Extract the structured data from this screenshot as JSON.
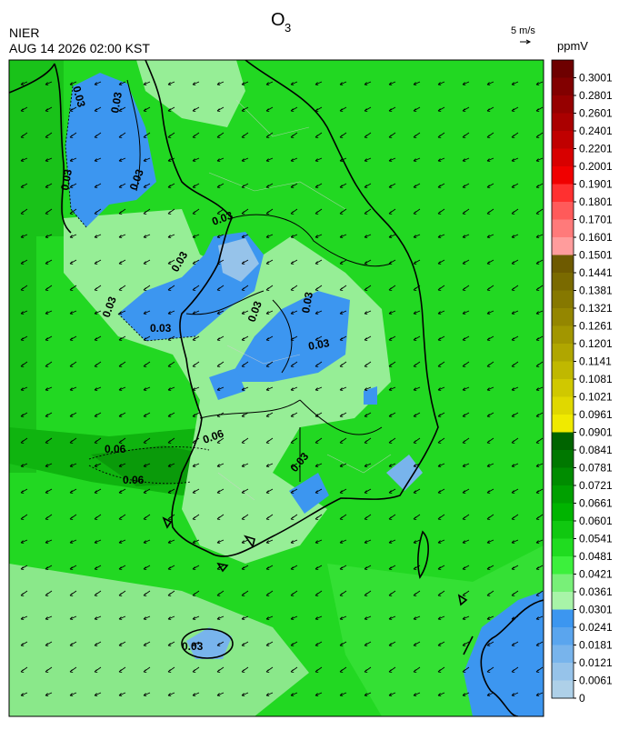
{
  "header": {
    "title": "O",
    "title_sub": "3",
    "source": "NIER",
    "datetime": "AUG 14 2026 02:00 KST",
    "wind_scale": "5 m/s",
    "unit": "ppmV"
  },
  "colorbar": {
    "labels": [
      0.3001,
      0.2801,
      0.2601,
      0.2401,
      0.2201,
      0.2001,
      0.1901,
      0.1801,
      0.1701,
      0.1601,
      0.1501,
      0.1441,
      0.1381,
      0.1321,
      0.1261,
      0.1201,
      0.1141,
      0.1081,
      0.1021,
      0.0961,
      0.0901,
      0.0841,
      0.0781,
      0.0721,
      0.0661,
      0.0601,
      0.0541,
      0.0481,
      0.0421,
      0.0361,
      0.0301,
      0.0241,
      0.0181,
      0.0121,
      0.0061,
      0
    ],
    "colors": [
      "#6e0000",
      "#820000",
      "#960000",
      "#aa0000",
      "#c00000",
      "#d80000",
      "#f00000",
      "#ff3030",
      "#ff5a5a",
      "#ff7a7a",
      "#ff9c9c",
      "#6e5a00",
      "#7a6a00",
      "#867800",
      "#948600",
      "#a29600",
      "#b0a600",
      "#c0b800",
      "#d0c800",
      "#e0d800",
      "#f0ea00",
      "#006400",
      "#007800",
      "#008c00",
      "#00a000",
      "#00b400",
      "#10c810",
      "#20dc20",
      "#3cf03c",
      "#78f078",
      "#a8f4a8",
      "#3c96f0",
      "#5aa5ee",
      "#78b4ec",
      "#96c3ea",
      "#aed0e8"
    ]
  },
  "contours": {
    "labels": [
      "0.03",
      "0.03",
      "0.03",
      "0.03",
      "0.03",
      "0.03",
      "0.03",
      "0.03",
      "0.03",
      "0.03",
      "0.03",
      "0.03",
      "0.03",
      "0.06",
      "0.06",
      "0.06"
    ]
  }
}
